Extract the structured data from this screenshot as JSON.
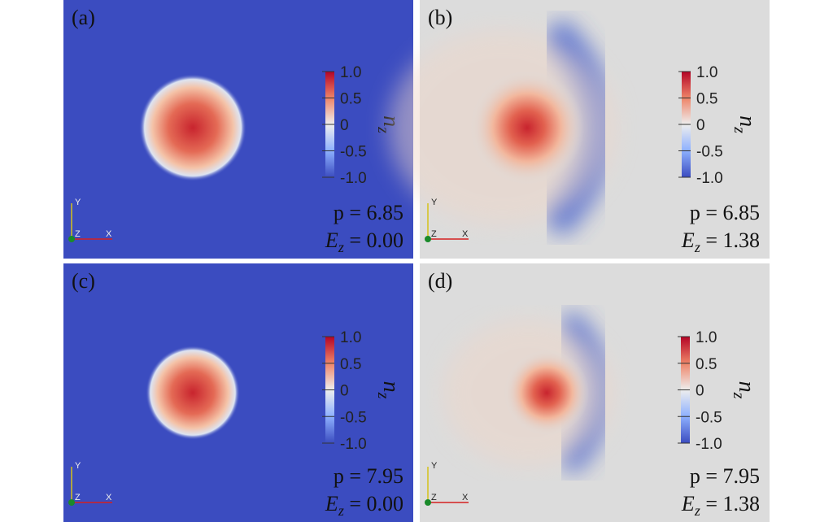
{
  "panels": [
    {
      "label": "(a)",
      "colorbar_ticks": [
        "1.0",
        "0.5",
        "0",
        "-0.5",
        "-1.0"
      ],
      "colorbar_symbol": "n",
      "colorbar_subscript": "z",
      "p_text": "p = 6.85",
      "e_symbol": "E",
      "e_subscript": "z",
      "e_value": " = 0.00",
      "axes": [
        "Y",
        "Z",
        "X"
      ]
    },
    {
      "label": "(b)",
      "colorbar_ticks": [
        "1.0",
        "0.5",
        "0",
        "-0.5",
        "-1.0"
      ],
      "colorbar_symbol": "n",
      "colorbar_subscript": "z",
      "p_text": "p = 6.85",
      "e_symbol": "E",
      "e_subscript": "z",
      "e_value": " = 1.38",
      "axes": [
        "Y",
        "Z",
        "X"
      ]
    },
    {
      "label": "(c)",
      "colorbar_ticks": [
        "1.0",
        "0.5",
        "0",
        "-0.5",
        "-1.0"
      ],
      "colorbar_symbol": "n",
      "colorbar_subscript": "z",
      "p_text": "p = 7.95",
      "e_symbol": "E",
      "e_subscript": "z",
      "e_value": " = 0.00",
      "axes": [
        "Y",
        "Z",
        "X"
      ]
    },
    {
      "label": "(d)",
      "colorbar_ticks": [
        "1.0",
        "0.5",
        "0",
        "-0.5",
        "-1.0"
      ],
      "colorbar_symbol": "n",
      "colorbar_subscript": "z",
      "p_text": "p = 7.95",
      "e_symbol": "E",
      "e_subscript": "z",
      "e_value": " = 1.38",
      "axes": [
        "Y",
        "Z",
        "X"
      ]
    }
  ]
}
